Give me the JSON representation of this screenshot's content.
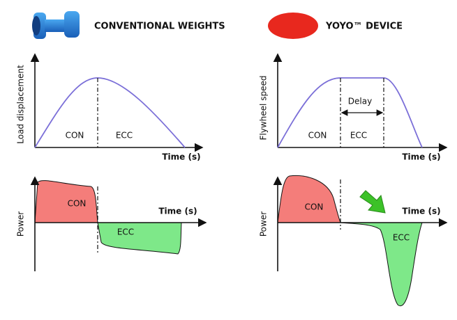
{
  "header": {
    "conventional": "CONVENTIONAL WEIGHTS",
    "yoyo": "YOYO™ DEVICE"
  },
  "panels": [
    {
      "y_label": "Load displacement",
      "x_label": "Time (s)",
      "phase_labels": [
        "CON",
        "ECC"
      ]
    },
    {
      "y_label": "Flywheel speed",
      "x_label": "Time (s)",
      "phase_labels": [
        "CON",
        "ECC"
      ],
      "annotation": "Delay"
    },
    {
      "y_label": "Power",
      "x_label": "Time (s)",
      "phase_labels": [
        "CON",
        "ECC"
      ]
    },
    {
      "y_label": "Power",
      "x_label": "Time (s)",
      "phase_labels": [
        "CON",
        "ECC"
      ]
    }
  ]
}
